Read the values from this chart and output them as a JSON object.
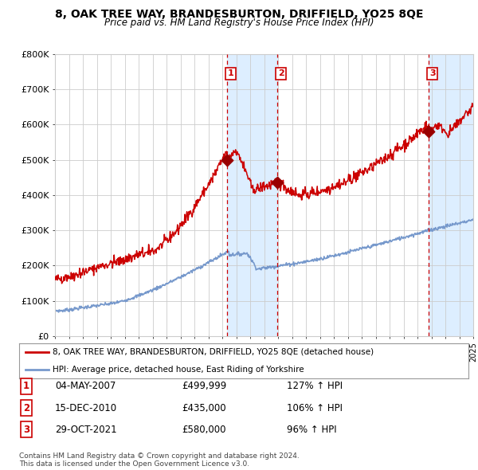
{
  "title": "8, OAK TREE WAY, BRANDESBURTON, DRIFFIELD, YO25 8QE",
  "subtitle": "Price paid vs. HM Land Registry's House Price Index (HPI)",
  "legend_line1": "8, OAK TREE WAY, BRANDESBURTON, DRIFFIELD, YO25 8QE (detached house)",
  "legend_line2": "HPI: Average price, detached house, East Riding of Yorkshire",
  "sale_labels": [
    "1",
    "2",
    "3"
  ],
  "sale_dates_label": [
    "04-MAY-2007",
    "15-DEC-2010",
    "29-OCT-2021"
  ],
  "sale_prices_label": [
    "£499,999",
    "£435,000",
    "£580,000"
  ],
  "sale_hpi_label": [
    "127% ↑ HPI",
    "106% ↑ HPI",
    "96% ↑ HPI"
  ],
  "footnote1": "Contains HM Land Registry data © Crown copyright and database right 2024.",
  "footnote2": "This data is licensed under the Open Government Licence v3.0.",
  "red_color": "#cc0000",
  "blue_color": "#7799cc",
  "shade_color": "#ddeeff",
  "dashed_color": "#cc0000",
  "grid_color": "#cccccc",
  "bg_color": "#ffffff",
  "ymin": 0,
  "ymax": 800000,
  "yticks": [
    0,
    100000,
    200000,
    300000,
    400000,
    500000,
    600000,
    700000,
    800000
  ],
  "ytick_labels": [
    "£0",
    "£100K",
    "£200K",
    "£300K",
    "£400K",
    "£500K",
    "£600K",
    "£700K",
    "£800K"
  ],
  "sale1_x_year": 2007.35,
  "sale1_y": 499999,
  "sale2_x_year": 2010.96,
  "sale2_y": 435000,
  "sale3_x_year": 2021.82,
  "sale3_y": 580000,
  "xmin": 1995.0,
  "xmax": 2025.0
}
